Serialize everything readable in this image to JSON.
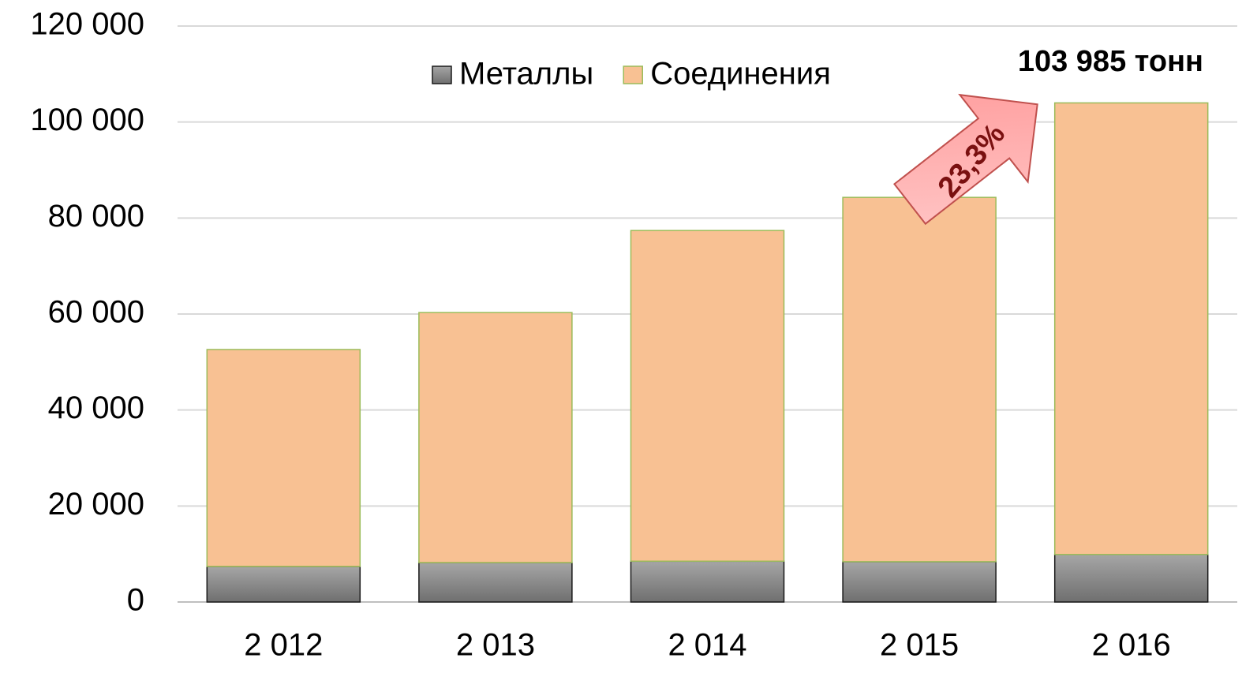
{
  "chart_data": {
    "type": "stacked_bar",
    "categories": [
      "2 012",
      "2 013",
      "2 014",
      "2 015",
      "2 016"
    ],
    "series": [
      {
        "name": "Металлы",
        "color": "#8c8c8c",
        "values": [
          7400,
          8200,
          8500,
          8400,
          9900
        ]
      },
      {
        "name": "Соединения",
        "color": "#f8c193",
        "values": [
          45200,
          52100,
          68900,
          75900,
          94085
        ]
      }
    ],
    "ylim": [
      0,
      120000
    ],
    "yticks": [
      0,
      {
        "value": 20000,
        "label": "20 000"
      },
      {
        "value": 40000,
        "label": "40 000"
      },
      {
        "value": 60000,
        "label": "60 000"
      },
      {
        "value": 80000,
        "label": "80 000"
      },
      {
        "value": 100000,
        "label": "100 000"
      },
      {
        "value": 120000,
        "label": "120 000"
      }
    ],
    "grid": true,
    "legend": "top",
    "annotations": [
      "103 985 тонн",
      "23,3%"
    ]
  }
}
